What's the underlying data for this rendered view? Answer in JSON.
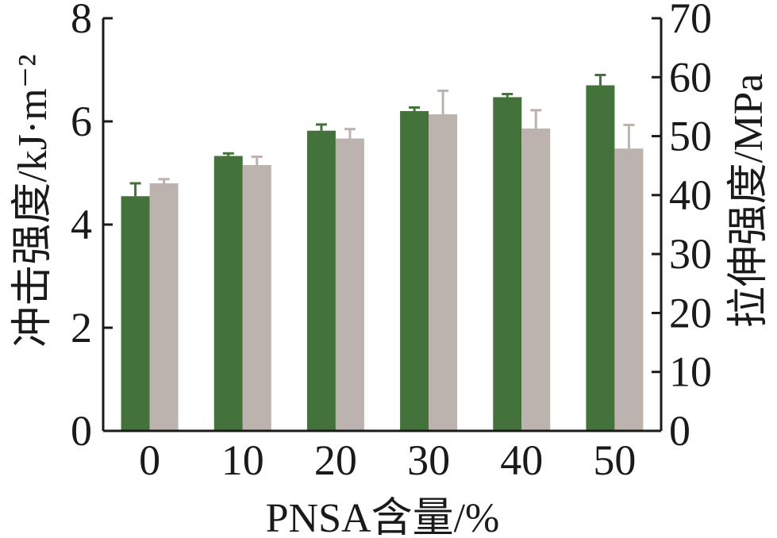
{
  "chart_data": {
    "type": "bar",
    "categories": [
      "0",
      "10",
      "20",
      "30",
      "40",
      "50"
    ],
    "xlabel": "PNSA含量/%",
    "ylabel_left": "冲击强度/kJ·m⁻²",
    "ylabel_right": "拉伸强度/MPa",
    "ylim_left": [
      0,
      8
    ],
    "ylim_right": [
      0,
      70
    ],
    "yticks_left": [
      "0",
      "2",
      "4",
      "6",
      "8"
    ],
    "yticks_right": [
      "0",
      "10",
      "20",
      "30",
      "40",
      "50",
      "60",
      "70"
    ],
    "series": [
      {
        "axis": "left",
        "color": "#43733a",
        "values": [
          4.55,
          5.33,
          5.82,
          6.2,
          6.47,
          6.7
        ],
        "errors": [
          0.25,
          0.05,
          0.12,
          0.07,
          0.06,
          0.2
        ]
      },
      {
        "axis": "right",
        "color": "#bcb3ae",
        "values": [
          42.0,
          45.1,
          49.6,
          53.7,
          51.3,
          47.9
        ],
        "errors": [
          0.7,
          1.4,
          1.6,
          4.0,
          3.1,
          4.0
        ]
      }
    ]
  }
}
